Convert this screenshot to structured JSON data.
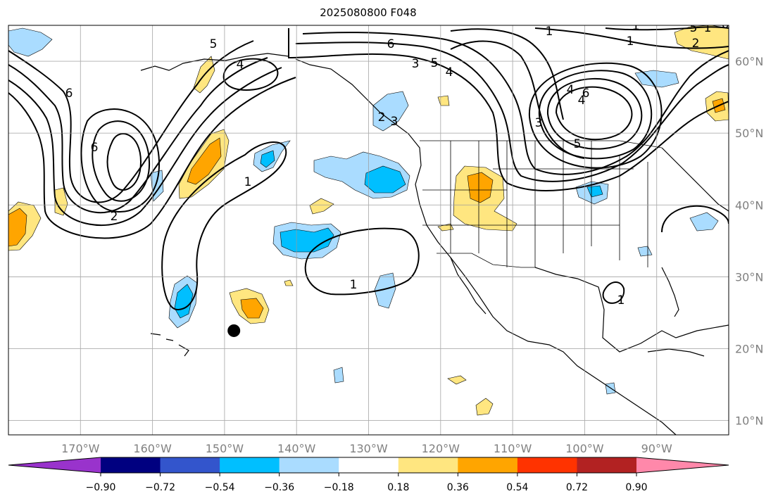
{
  "title": "2025080800 F048",
  "map": {
    "projection": "PlateCarree",
    "lon_range": [
      -180,
      -80
    ],
    "lat_range": [
      8,
      65
    ],
    "gridlines": true,
    "lon_ticks": [
      {
        "lon": -170,
        "label": "170°W"
      },
      {
        "lon": -160,
        "label": "160°W"
      },
      {
        "lon": -150,
        "label": "150°W"
      },
      {
        "lon": -140,
        "label": "140°W"
      },
      {
        "lon": -130,
        "label": "130°W"
      },
      {
        "lon": -120,
        "label": "120°W"
      },
      {
        "lon": -110,
        "label": "110°W"
      },
      {
        "lon": -100,
        "label": "100°W"
      },
      {
        "lon": -90,
        "label": "90°W"
      }
    ],
    "lat_ticks": [
      {
        "lat": 60,
        "label": "60°N"
      },
      {
        "lat": 50,
        "label": "50°N"
      },
      {
        "lat": 40,
        "label": "40°N"
      },
      {
        "lat": 30,
        "label": "30°N"
      },
      {
        "lat": 20,
        "label": "20°N"
      },
      {
        "lat": 10,
        "label": "10°N"
      }
    ],
    "marker": {
      "name": "storm-center-marker",
      "lon": -148.7,
      "lat": 22.5
    }
  },
  "colorbar": {
    "extend": "both",
    "levels": [
      -0.9,
      -0.72,
      -0.54,
      -0.36,
      -0.18,
      0.18,
      0.36,
      0.54,
      0.72,
      0.9
    ],
    "labels": [
      "−0.90",
      "−0.72",
      "−0.54",
      "−0.36",
      "−0.18",
      "0.18",
      "0.36",
      "0.54",
      "0.72",
      "0.90"
    ],
    "colors": [
      "#9933cc",
      "#000080",
      "#3355cc",
      "#00bfff",
      "#aadcff",
      "#ffffff",
      "#ffe680",
      "#ffa500",
      "#ff3300",
      "#b22222",
      "#ff88aa"
    ]
  },
  "contour_labels": [
    "6",
    "5",
    "4",
    "3",
    "2",
    "1",
    "6",
    "2",
    "1",
    "1",
    "6",
    "4",
    "3",
    "5",
    "4",
    "1",
    "1",
    "1",
    "3",
    "5",
    "4",
    "6",
    "1",
    "5",
    "6",
    "2"
  ],
  "chart_data": {
    "type": "map",
    "fill_field": {
      "colorbar_levels": [
        -0.9,
        -0.72,
        -0.54,
        -0.36,
        -0.18,
        0.18,
        0.36,
        0.54,
        0.72,
        0.9
      ],
      "regions": [
        {
          "center": [
            -150.5,
            46.5
          ],
          "level": 0.36
        },
        {
          "center": [
            -177.5,
            37.0
          ],
          "level": 0.36
        },
        {
          "center": [
            -113.5,
            41.0
          ],
          "level": 0.36
        },
        {
          "center": [
            -144.5,
            26.5
          ],
          "level": 0.36
        },
        {
          "center": [
            -154.5,
            27.0
          ],
          "level": -0.54
        },
        {
          "center": [
            -143.5,
            47.5
          ],
          "level": -0.54
        },
        {
          "center": [
            -132.0,
            43.5
          ],
          "level": -0.54
        },
        {
          "center": [
            -139.5,
            35.5
          ],
          "level": -0.54
        },
        {
          "center": [
            -98.0,
            42.0
          ],
          "level": -0.54
        },
        {
          "center": [
            -178.0,
            61.5
          ],
          "level": -0.36
        },
        {
          "center": [
            -129.5,
            30.0
          ],
          "level": -0.36
        },
        {
          "center": [
            -130.5,
            54.0
          ],
          "level": -0.18
        },
        {
          "center": [
            -95.0,
            60.0
          ],
          "level": -0.18
        },
        {
          "center": [
            -174.0,
            41.0
          ],
          "level": 0.18
        },
        {
          "center": [
            -140.0,
            40.5
          ],
          "level": 0.18
        },
        {
          "center": [
            -148.0,
            59.5
          ],
          "level": 0.18
        },
        {
          "center": [
            -114.0,
            12.5
          ],
          "level": 0.18
        },
        {
          "center": [
            -117.5,
            16.0
          ],
          "level": 0.18
        },
        {
          "center": [
            -82.0,
            53.5
          ],
          "level": 0.36
        },
        {
          "center": [
            -83.0,
            62.0
          ],
          "level": 0.18
        }
      ]
    }
  }
}
